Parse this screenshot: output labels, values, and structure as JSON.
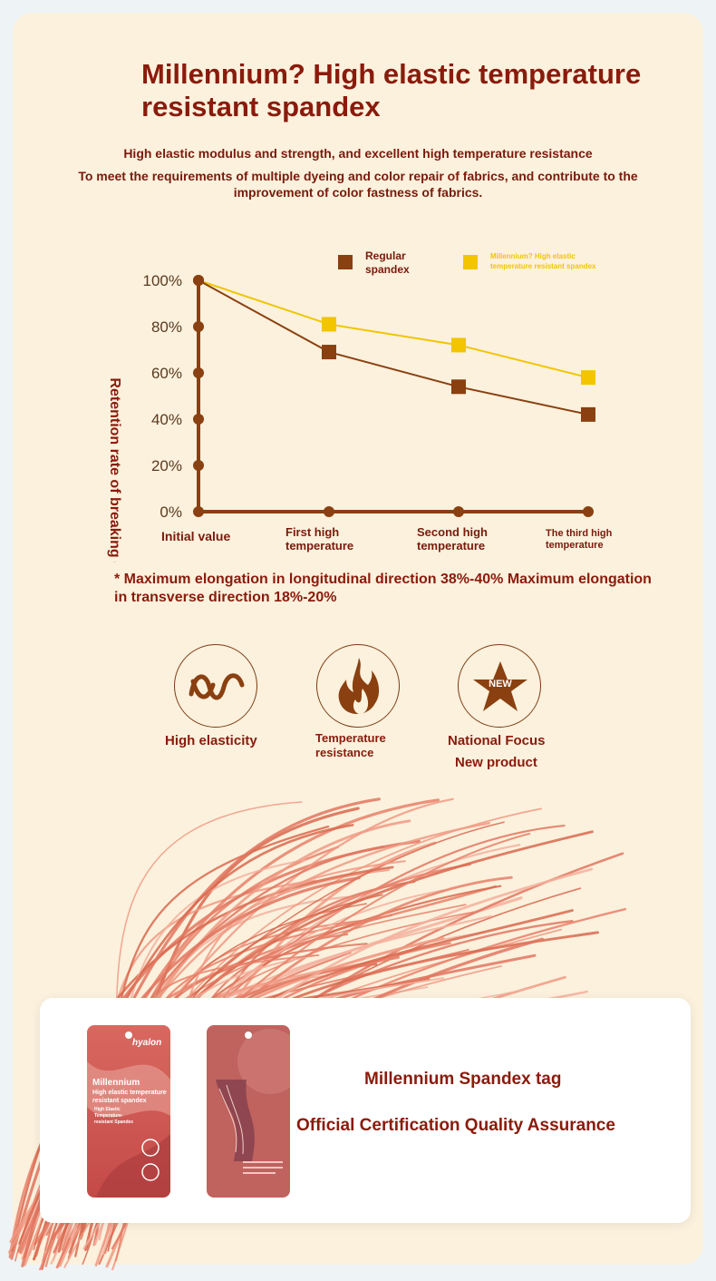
{
  "title": "Millennium? High elastic temperature resistant spandex",
  "subtitle_1": "High elastic modulus and strength, and excellent high temperature resistance",
  "subtitle_2": "To meet the requirements of multiple dyeing and color repair of fabrics, and contribute to the improvement of color fastness of fabrics.",
  "colors": {
    "regular": "#8a4010",
    "millennium": "#f2c500",
    "title": "#8a1b0c"
  },
  "chart_data": {
    "type": "line",
    "ylabel": "Retention rate of breaking elasticity",
    "categories": [
      "Initial value",
      "First high temperature",
      "Second high temperature",
      "The third high temperature"
    ],
    "yticks": [
      "0%",
      "20%",
      "40%",
      "60%",
      "80%",
      "100%"
    ],
    "ylim": [
      0,
      100
    ],
    "legend_position": "top-right",
    "series": [
      {
        "name": "Regular spandex",
        "values": [
          100,
          69,
          54,
          42
        ]
      },
      {
        "name": "Millennium? High elastic temperature resistant spandex",
        "values": [
          100,
          81,
          72,
          58
        ]
      }
    ]
  },
  "note": "* Maximum elongation in longitudinal direction 38%-40% Maximum elongation in transverse direction 18%-20%",
  "features": [
    {
      "icon": "wave-icon",
      "label": "High elasticity"
    },
    {
      "icon": "flame-icon",
      "label": "Temperature resistance"
    },
    {
      "icon": "star-icon",
      "badge": "NEW",
      "label_1": "National Focus",
      "label_2": "New product"
    }
  ],
  "tag_card": {
    "tag_front": {
      "brand": "hyalon",
      "line_1": "Millennium",
      "line_2": "High elastic temperature resistant spandex",
      "line_3": "High Elastic Temperature-resistant Spandex"
    },
    "line_1": "Millennium Spandex tag",
    "line_2": "Official Certification Quality Assurance"
  }
}
